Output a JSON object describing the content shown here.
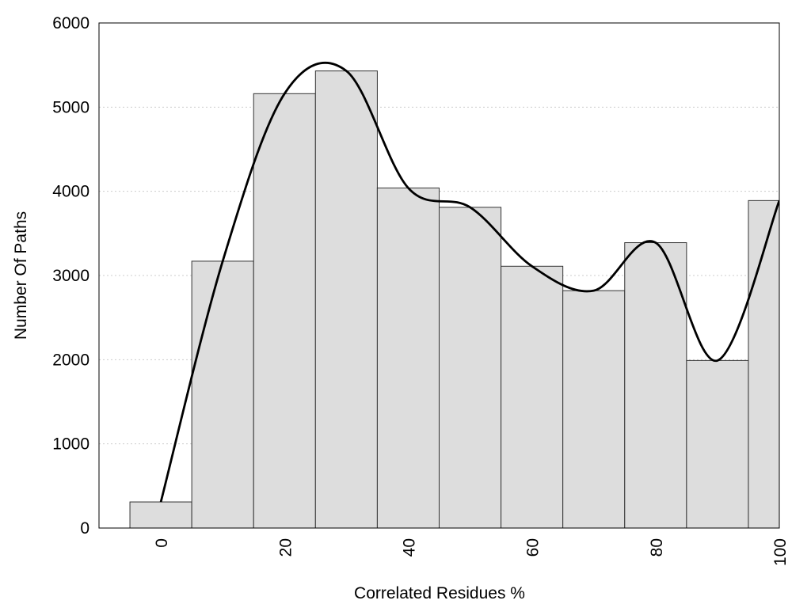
{
  "chart_data": {
    "type": "histogram",
    "x_label": "Correlated Residues %",
    "y_label": "Number Of Paths",
    "bins": [
      -5,
      5,
      15,
      25,
      35,
      45,
      55,
      65,
      75,
      85,
      95,
      105
    ],
    "values": [
      310,
      3170,
      5160,
      5430,
      4040,
      3810,
      3110,
      2820,
      3390,
      1990,
      3890
    ],
    "color": "#dddddd",
    "line_color": "#000000",
    "smooth_curve": true,
    "xlim": [
      -10,
      100
    ],
    "xticks": [
      0,
      20,
      40,
      60,
      80,
      100
    ],
    "ylim": [
      0,
      6000
    ],
    "yticks": [
      0,
      1000,
      2000,
      3000,
      4000,
      5000,
      6000
    ],
    "grid": true
  }
}
